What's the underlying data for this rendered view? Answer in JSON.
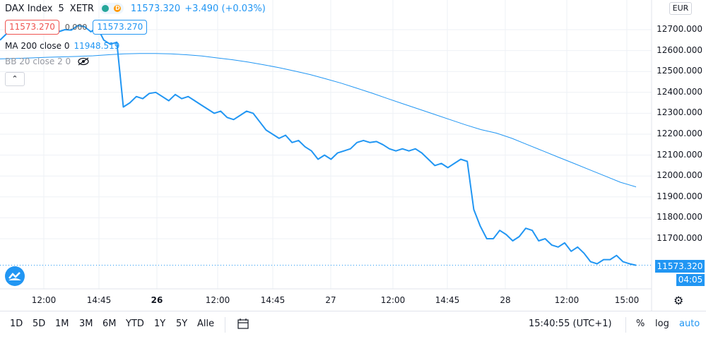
{
  "header": {
    "symbol": "DAX Index",
    "interval": "5",
    "exchange": "XETR",
    "badge_letter": "D",
    "last": "11573.320",
    "change": "+3.490 (+0.03%)"
  },
  "price_boxes": {
    "bid": "11573.270",
    "spread": "0.000",
    "ask": "11573.270"
  },
  "indicators": {
    "ma_label": "MA 200 close 0",
    "ma_value": "11948.519",
    "bb_label": "BB 20 close 2 0"
  },
  "colors": {
    "line": "#2196f3",
    "grid": "#eef1f6",
    "bid": "#ef5350",
    "accent": "#2196f3"
  },
  "axis": {
    "currency": "EUR",
    "y_ticks": [
      "12700.000",
      "12600.000",
      "12500.000",
      "12400.000",
      "12300.000",
      "12200.000",
      "12100.000",
      "12000.000",
      "11900.000",
      "11800.000",
      "11700.000"
    ],
    "x_ticks": [
      {
        "label": "12:00",
        "bold": false
      },
      {
        "label": "14:45",
        "bold": false
      },
      {
        "label": "26",
        "bold": true
      },
      {
        "label": "12:00",
        "bold": false
      },
      {
        "label": "14:45",
        "bold": false
      },
      {
        "label": "27",
        "bold": false
      },
      {
        "label": "12:00",
        "bold": false
      },
      {
        "label": "14:45",
        "bold": false
      },
      {
        "label": "28",
        "bold": false
      },
      {
        "label": "12:00",
        "bold": false
      },
      {
        "label": "15:00",
        "bold": false
      }
    ],
    "price_label": "11573.320",
    "countdown": "04:05"
  },
  "chart_data": {
    "type": "line",
    "ylim": [
      11500,
      12800
    ],
    "grid": true,
    "series": [
      {
        "name": "DAX Index",
        "values": [
          12650,
          12680,
          12690,
          12705,
          12700,
          12698,
          12720,
          12715,
          12710,
          12690,
          12700,
          12698,
          12720,
          12715,
          12690,
          12710,
          12650,
          12630,
          12640,
          12330,
          12350,
          12380,
          12370,
          12395,
          12400,
          12380,
          12360,
          12390,
          12370,
          12380,
          12360,
          12340,
          12320,
          12300,
          12310,
          12280,
          12270,
          12290,
          12310,
          12300,
          12260,
          12220,
          12200,
          12180,
          12195,
          12160,
          12170,
          12140,
          12120,
          12080,
          12100,
          12080,
          12110,
          12120,
          12130,
          12160,
          12170,
          12160,
          12165,
          12150,
          12130,
          12120,
          12130,
          12120,
          12130,
          12110,
          12080,
          12050,
          12060,
          12040,
          12060,
          12080,
          12070,
          11840,
          11760,
          11700,
          11700,
          11740,
          11720,
          11690,
          11710,
          11750,
          11740,
          11690,
          11700,
          11670,
          11660,
          11680,
          11640,
          11660,
          11630,
          11590,
          11580,
          11600,
          11600,
          11620,
          11590,
          11580,
          11573
        ]
      },
      {
        "name": "MA 200",
        "values": [
          12560,
          12562,
          12565,
          12568,
          12570,
          12572,
          12575,
          12580,
          12584,
          12586,
          12586,
          12584,
          12580,
          12574,
          12565,
          12556,
          12545,
          12532,
          12518,
          12502,
          12485,
          12465,
          12444,
          12420,
          12396,
          12370,
          12345,
          12320,
          12295,
          12270,
          12245,
          12222,
          12205,
          12180,
          12150,
          12120,
          12090,
          12060,
          12030,
          12000,
          11970,
          11948
        ]
      }
    ]
  },
  "toolbar": {
    "ranges": [
      "1D",
      "5D",
      "1M",
      "3M",
      "6M",
      "YTD",
      "1Y",
      "5Y",
      "Alle"
    ],
    "time": "15:40:55 (UTC+1)",
    "percent": "%",
    "log": "log",
    "auto": "auto"
  }
}
